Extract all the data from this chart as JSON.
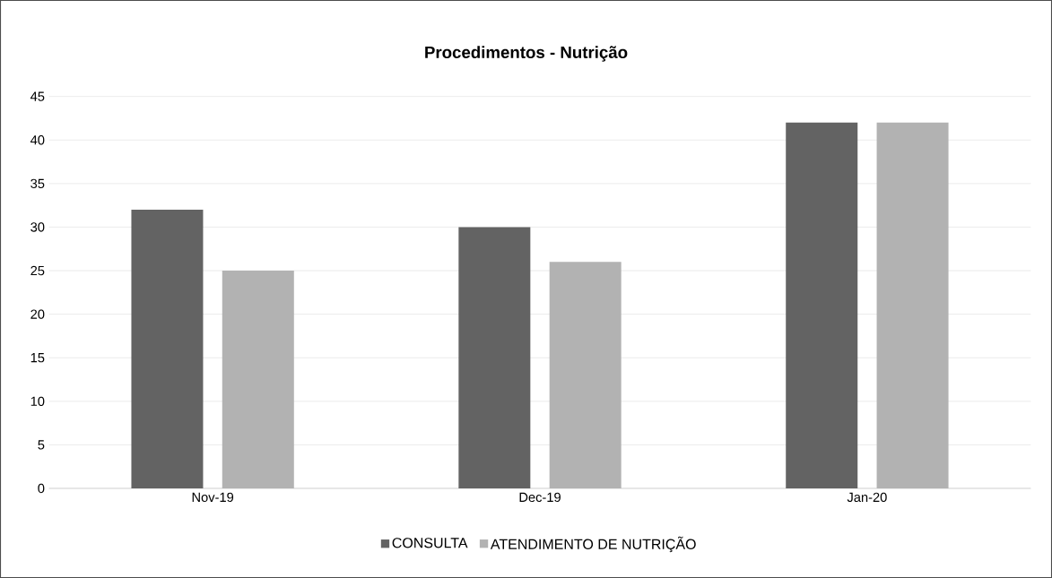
{
  "chart_data": {
    "type": "bar",
    "title": "Procedimentos - Nutrição",
    "categories": [
      "Nov-19",
      "Dec-19",
      "Jan-20"
    ],
    "series": [
      {
        "name": "CONSULTA",
        "color": "#636363",
        "values": [
          32,
          30,
          42
        ]
      },
      {
        "name": "ATENDIMENTO DE NUTRIÇÃO",
        "color": "#b2b2b2",
        "values": [
          25,
          26,
          42
        ]
      }
    ],
    "ylim": [
      0,
      45
    ],
    "yticks": [
      0,
      5,
      10,
      15,
      20,
      25,
      30,
      35,
      40,
      45
    ],
    "grid": "y",
    "legend": "bottom"
  }
}
